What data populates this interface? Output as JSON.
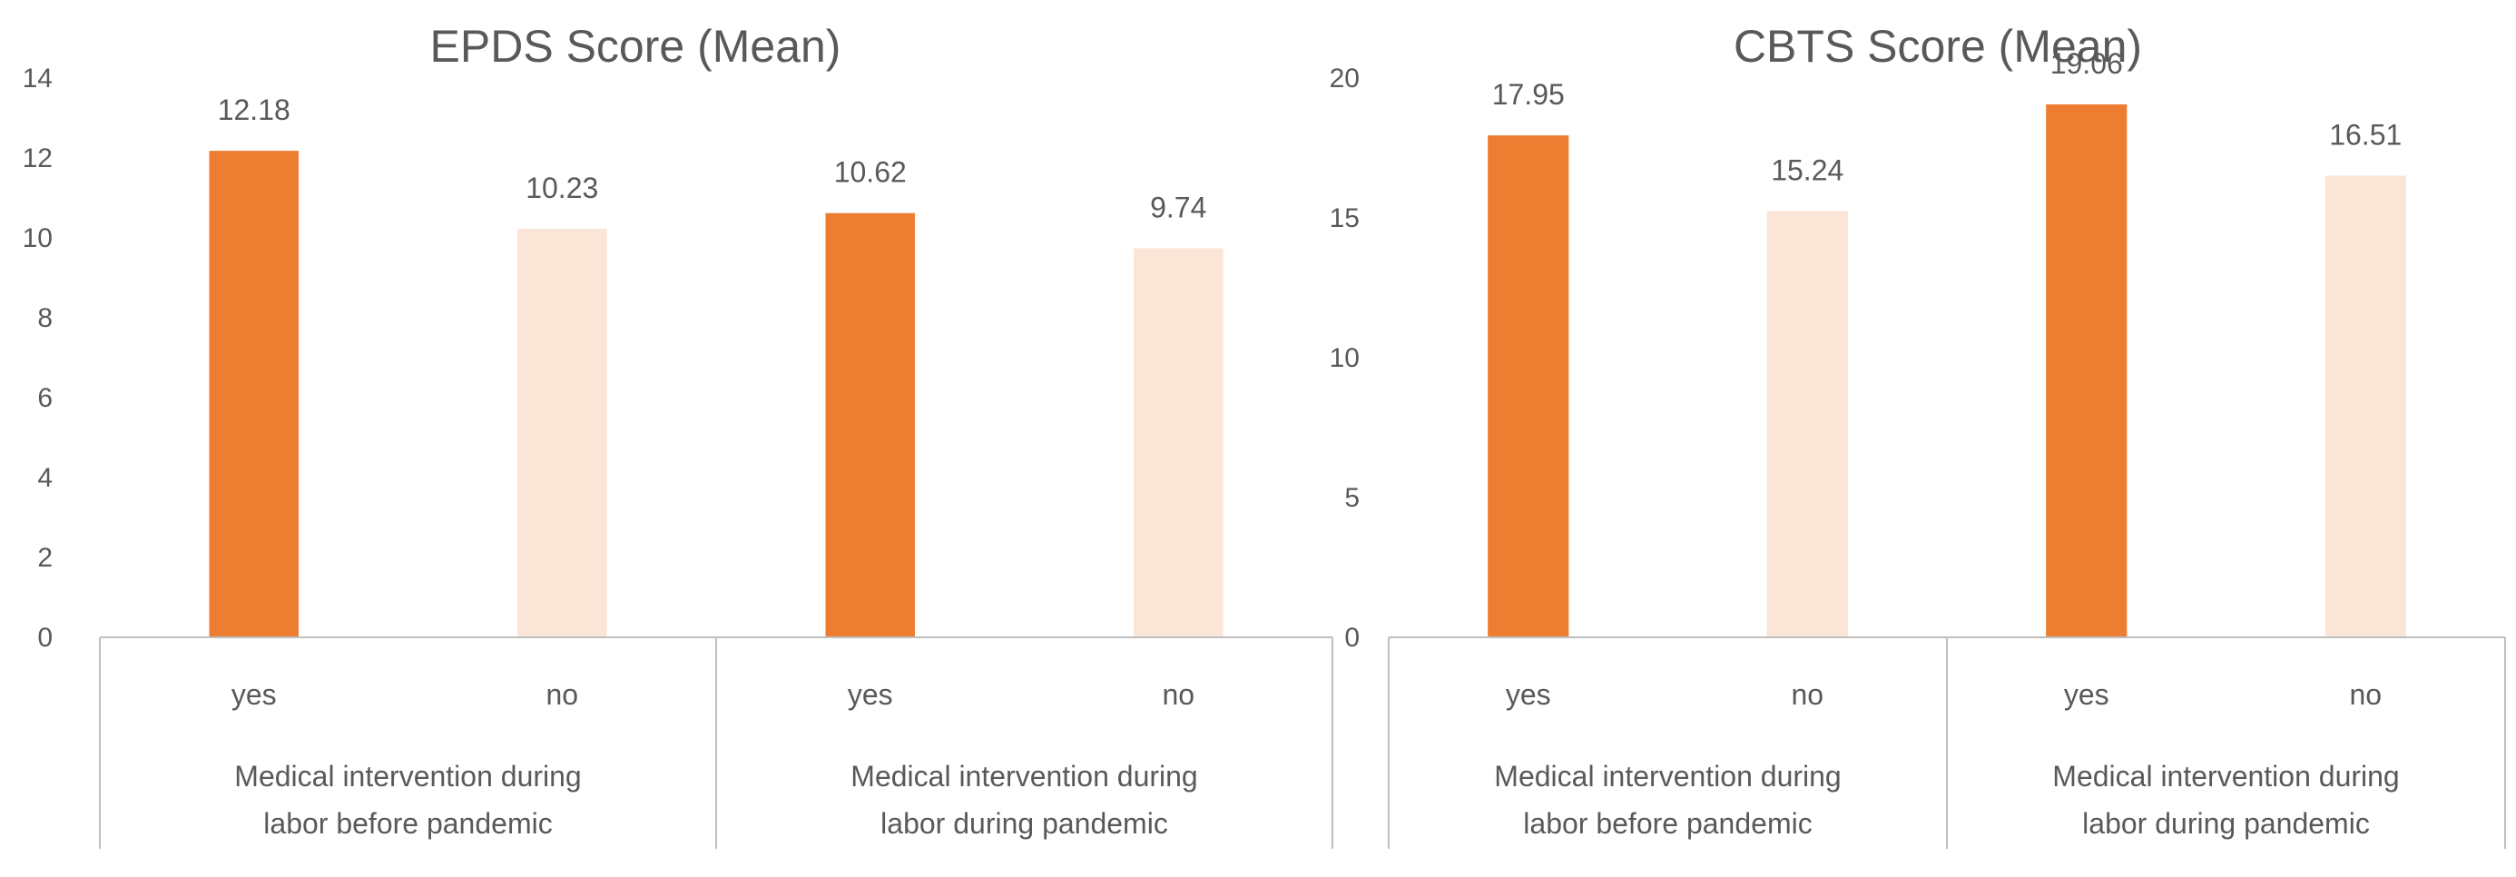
{
  "chart_data": [
    {
      "type": "bar",
      "title": "EPDS Score (Mean)",
      "categories": [
        "yes",
        "no",
        "yes",
        "no"
      ],
      "groups": [
        {
          "lines": [
            "Medical intervention during",
            "labor before pandemic"
          ]
        },
        {
          "lines": [
            "Medical intervention during",
            "labor during pandemic"
          ]
        }
      ],
      "values": [
        12.18,
        10.23,
        10.62,
        9.74
      ],
      "value_labels": [
        "12.18",
        "10.23",
        "10.62",
        "9.74"
      ],
      "ylim": [
        0,
        14
      ],
      "yticks": [
        0,
        2,
        4,
        6,
        8,
        10,
        12,
        14
      ],
      "bar_colors": [
        "#ED7D31",
        "#FBE5D6",
        "#ED7D31",
        "#FBE5D6"
      ],
      "grid": false
    },
    {
      "type": "bar",
      "title": "CBTS Score (Mean)",
      "categories": [
        "yes",
        "no",
        "yes",
        "no"
      ],
      "groups": [
        {
          "lines": [
            "Medical intervention during",
            "labor before pandemic"
          ]
        },
        {
          "lines": [
            "Medical intervention during",
            "labor during pandemic"
          ]
        }
      ],
      "values": [
        17.95,
        15.24,
        19.06,
        16.51
      ],
      "value_labels": [
        "17.95",
        "15.24",
        "19.06",
        "16.51"
      ],
      "ylim": [
        0,
        20
      ],
      "yticks": [
        0,
        5,
        10,
        15,
        20
      ],
      "bar_colors": [
        "#ED7D31",
        "#FBE5D6",
        "#ED7D31",
        "#FBE5D6"
      ],
      "grid": false
    }
  ]
}
